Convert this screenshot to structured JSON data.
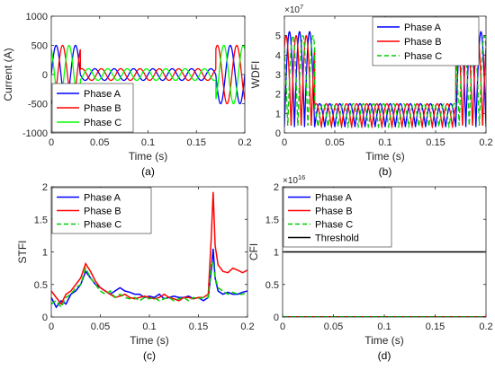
{
  "chart_data": [
    {
      "id": "a",
      "type": "line",
      "panel_label": "(a)",
      "xlabel": "Time (s)",
      "ylabel": "Current (A)",
      "xlim": [
        0,
        0.2
      ],
      "ylim": [
        -1000,
        1000
      ],
      "xticks": [
        0,
        0.05,
        0.1,
        0.15,
        0.2
      ],
      "xtick_labels": [
        "0",
        "0.05",
        "0.1",
        "0.15",
        "0.2"
      ],
      "yticks": [
        -1000,
        -500,
        0,
        500,
        1000
      ],
      "ytick_labels": [
        "-1000",
        "-500",
        "0",
        "500",
        "1000"
      ],
      "legend": {
        "position": "bottom-left"
      },
      "series": [
        {
          "name": "Phase A",
          "color": "#0000ff",
          "style": "solid",
          "model": "sinusoid",
          "frequency_hz": 50,
          "phase_deg": 0,
          "segments": [
            {
              "t": [
                0,
                0.03
              ],
              "amplitude": 500
            },
            {
              "t": [
                0.03,
                0.17
              ],
              "amplitude": 100
            },
            {
              "t": [
                0.17,
                0.2
              ],
              "amplitude": 500
            }
          ]
        },
        {
          "name": "Phase B",
          "color": "#ff0000",
          "style": "solid",
          "model": "sinusoid",
          "frequency_hz": 50,
          "phase_deg": -120,
          "segments": [
            {
              "t": [
                0,
                0.03
              ],
              "amplitude": 500
            },
            {
              "t": [
                0.03,
                0.17
              ],
              "amplitude": 100
            },
            {
              "t": [
                0.17,
                0.2
              ],
              "amplitude": 500
            }
          ]
        },
        {
          "name": "Phase C",
          "color": "#00ff00",
          "style": "solid",
          "model": "sinusoid",
          "frequency_hz": 50,
          "phase_deg": 120,
          "segments": [
            {
              "t": [
                0,
                0.03
              ],
              "amplitude": 500
            },
            {
              "t": [
                0.03,
                0.17
              ],
              "amplitude": 100
            },
            {
              "t": [
                0.17,
                0.2
              ],
              "amplitude": 500
            }
          ]
        }
      ]
    },
    {
      "id": "b",
      "type": "line",
      "panel_label": "(b)",
      "xlabel": "Time (s)",
      "ylabel": "WDFI",
      "y_multiplier": "×10",
      "y_exponent": "7",
      "xlim": [
        0,
        0.2
      ],
      "ylim": [
        0,
        6
      ],
      "xticks": [
        0,
        0.05,
        0.1,
        0.15,
        0.2
      ],
      "xtick_labels": [
        "0",
        "0.05",
        "0.1",
        "0.15",
        "0.2"
      ],
      "yticks": [
        0,
        1,
        2,
        3,
        4,
        5
      ],
      "ytick_labels": [
        "0",
        "1",
        "2",
        "3",
        "4",
        "5"
      ],
      "legend": {
        "position": "top-right"
      },
      "series": [
        {
          "name": "Phase A",
          "color": "#0000ff",
          "style": "solid",
          "model": "rectified_sinusoid",
          "frequency_hz": 50,
          "phase_deg": 0,
          "segments": [
            {
              "t": [
                0,
                0.03
              ],
              "max": 5.2,
              "min": 0.3
            },
            {
              "t": [
                0.03,
                0.17
              ],
              "max": 1.5,
              "min": 0.3
            },
            {
              "t": [
                0.17,
                0.2
              ],
              "max": 5.2,
              "min": 0.3
            }
          ]
        },
        {
          "name": "Phase B",
          "color": "#ff0000",
          "style": "solid",
          "model": "rectified_sinusoid",
          "frequency_hz": 50,
          "phase_deg": -120,
          "segments": [
            {
              "t": [
                0,
                0.03
              ],
              "max": 5.0,
              "min": 0.3
            },
            {
              "t": [
                0.03,
                0.17
              ],
              "max": 1.5,
              "min": 0.3
            },
            {
              "t": [
                0.17,
                0.2
              ],
              "max": 5.0,
              "min": 0.3
            }
          ]
        },
        {
          "name": "Phase C",
          "color": "#00cc00",
          "style": "dashed",
          "model": "rectified_sinusoid",
          "frequency_hz": 50,
          "phase_deg": 120,
          "segments": [
            {
              "t": [
                0,
                0.03
              ],
              "max": 5.0,
              "min": 0.3
            },
            {
              "t": [
                0.03,
                0.17
              ],
              "max": 1.5,
              "min": 0.3
            },
            {
              "t": [
                0.17,
                0.2
              ],
              "max": 5.0,
              "min": 0.3
            }
          ]
        }
      ]
    },
    {
      "id": "c",
      "type": "line",
      "panel_label": "(c)",
      "xlabel": "Time (s)",
      "ylabel": "STFI",
      "xlim": [
        0,
        0.2
      ],
      "ylim": [
        0,
        2
      ],
      "xticks": [
        0,
        0.05,
        0.1,
        0.15,
        0.2
      ],
      "xtick_labels": [
        "0",
        "0.05",
        "0.1",
        "0.15",
        "0.2"
      ],
      "yticks": [
        0,
        0.5,
        1,
        1.5,
        2
      ],
      "ytick_labels": [
        "0",
        "0.5",
        "1",
        "1.5",
        "2"
      ],
      "legend": {
        "position": "top-left"
      },
      "series": [
        {
          "name": "Phase A",
          "color": "#0000ff",
          "style": "solid",
          "x": [
            0,
            0.005,
            0.01,
            0.015,
            0.02,
            0.025,
            0.03,
            0.035,
            0.04,
            0.045,
            0.05,
            0.055,
            0.06,
            0.065,
            0.07,
            0.075,
            0.08,
            0.085,
            0.09,
            0.095,
            0.1,
            0.105,
            0.11,
            0.115,
            0.12,
            0.125,
            0.13,
            0.135,
            0.14,
            0.145,
            0.15,
            0.155,
            0.16,
            0.163,
            0.165,
            0.167,
            0.17,
            0.175,
            0.18,
            0.185,
            0.19,
            0.195,
            0.2
          ],
          "y": [
            0.3,
            0.15,
            0.25,
            0.2,
            0.35,
            0.4,
            0.5,
            0.7,
            0.6,
            0.5,
            0.45,
            0.4,
            0.35,
            0.4,
            0.45,
            0.4,
            0.38,
            0.35,
            0.35,
            0.3,
            0.32,
            0.3,
            0.35,
            0.28,
            0.3,
            0.32,
            0.3,
            0.3,
            0.32,
            0.28,
            0.3,
            0.25,
            0.3,
            0.7,
            1.05,
            0.6,
            0.4,
            0.35,
            0.38,
            0.35,
            0.35,
            0.38,
            0.4
          ]
        },
        {
          "name": "Phase B",
          "color": "#ff0000",
          "style": "solid",
          "x": [
            0,
            0.005,
            0.01,
            0.015,
            0.02,
            0.025,
            0.03,
            0.035,
            0.04,
            0.045,
            0.05,
            0.055,
            0.06,
            0.065,
            0.07,
            0.075,
            0.08,
            0.085,
            0.09,
            0.095,
            0.1,
            0.105,
            0.11,
            0.115,
            0.12,
            0.125,
            0.13,
            0.135,
            0.14,
            0.145,
            0.15,
            0.155,
            0.16,
            0.163,
            0.165,
            0.167,
            0.17,
            0.175,
            0.18,
            0.185,
            0.19,
            0.195,
            0.2
          ],
          "y": [
            0.4,
            0.3,
            0.2,
            0.35,
            0.4,
            0.5,
            0.6,
            0.82,
            0.7,
            0.55,
            0.45,
            0.4,
            0.35,
            0.3,
            0.32,
            0.35,
            0.3,
            0.28,
            0.3,
            0.32,
            0.3,
            0.28,
            0.3,
            0.35,
            0.3,
            0.28,
            0.25,
            0.3,
            0.3,
            0.28,
            0.3,
            0.3,
            0.35,
            1.2,
            1.92,
            1.1,
            0.8,
            0.7,
            0.68,
            0.75,
            0.72,
            0.68,
            0.72
          ]
        },
        {
          "name": "Phase C",
          "color": "#00cc00",
          "style": "dashed",
          "x": [
            0,
            0.005,
            0.01,
            0.015,
            0.02,
            0.025,
            0.03,
            0.035,
            0.04,
            0.045,
            0.05,
            0.055,
            0.06,
            0.065,
            0.07,
            0.075,
            0.08,
            0.085,
            0.09,
            0.095,
            0.1,
            0.105,
            0.11,
            0.115,
            0.12,
            0.125,
            0.13,
            0.135,
            0.14,
            0.145,
            0.15,
            0.155,
            0.16,
            0.163,
            0.165,
            0.167,
            0.17,
            0.175,
            0.18,
            0.185,
            0.19,
            0.195,
            0.2
          ],
          "y": [
            0.2,
            0.25,
            0.15,
            0.3,
            0.35,
            0.45,
            0.5,
            0.75,
            0.6,
            0.5,
            0.4,
            0.35,
            0.4,
            0.3,
            0.35,
            0.3,
            0.28,
            0.3,
            0.25,
            0.3,
            0.28,
            0.3,
            0.25,
            0.28,
            0.3,
            0.25,
            0.28,
            0.3,
            0.25,
            0.3,
            0.28,
            0.3,
            0.3,
            0.8,
            0.85,
            0.6,
            0.45,
            0.4,
            0.35,
            0.38,
            0.35,
            0.35,
            0.38
          ]
        }
      ]
    },
    {
      "id": "d",
      "type": "line",
      "panel_label": "(d)",
      "xlabel": "Time (s)",
      "ylabel": "CFI",
      "y_multiplier": "×10",
      "y_exponent": "16",
      "xlim": [
        0,
        0.2
      ],
      "ylim": [
        0,
        2
      ],
      "xticks": [
        0,
        0.05,
        0.1,
        0.15,
        0.2
      ],
      "xtick_labels": [
        "0",
        "0.05",
        "0.1",
        "0.15",
        "0.2"
      ],
      "yticks": [
        0,
        0.5,
        1,
        1.5,
        2
      ],
      "ytick_labels": [
        "0",
        "0.5",
        "1",
        "1.5",
        "2"
      ],
      "legend": {
        "position": "top-left"
      },
      "series": [
        {
          "name": "Phase A",
          "color": "#0000ff",
          "style": "solid",
          "x": [
            0,
            0.2
          ],
          "y": [
            0.003,
            0.003
          ]
        },
        {
          "name": "Phase B",
          "color": "#ff0000",
          "style": "solid",
          "x": [
            0,
            0.2
          ],
          "y": [
            0.003,
            0.003
          ]
        },
        {
          "name": "Phase C",
          "color": "#00cc00",
          "style": "dashed",
          "x": [
            0,
            0.2
          ],
          "y": [
            0.003,
            0.003
          ]
        },
        {
          "name": "Threshold",
          "color": "#000000",
          "style": "solid",
          "x": [
            0,
            0.2
          ],
          "y": [
            1,
            1
          ]
        }
      ]
    }
  ]
}
